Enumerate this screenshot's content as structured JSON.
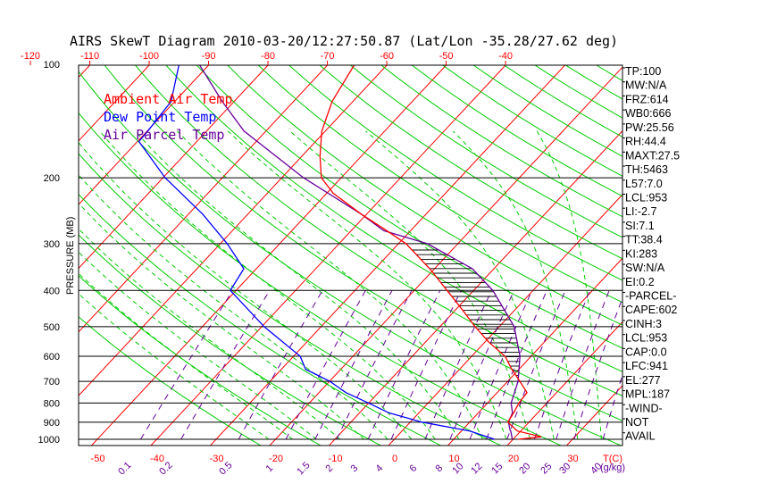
{
  "chart_data": {
    "type": "line",
    "title": "AIRS SkewT Diagram 2010-03-20/12:27:50.87 (Lat/Lon -35.28/27.62 deg)",
    "ylabel": "PRESSURE (MB)",
    "pressure_ticks": [
      "100",
      "200",
      "300",
      "400",
      "500",
      "600",
      "700",
      "800",
      "900",
      "1000"
    ],
    "pressure_values": [
      100,
      200,
      300,
      400,
      500,
      600,
      700,
      800,
      900,
      1000
    ],
    "top_temp_ticks": [
      "-120",
      "-110",
      "-100",
      "-90",
      "-80",
      "-70",
      "-60",
      "-50",
      "-40"
    ],
    "top_temp_values": [
      -120,
      -110,
      -100,
      -90,
      -80,
      -70,
      -60,
      -50,
      -40
    ],
    "bottom_temp_ticks": [
      "-50",
      "-40",
      "-30",
      "-20",
      "-10",
      "0",
      "10",
      "20",
      "30"
    ],
    "bottom_temp_values": [
      -50,
      -40,
      -30,
      -20,
      -10,
      0,
      10,
      20,
      30
    ],
    "bottom_temp_unit": "T(C)",
    "mixing_ratio_ticks": [
      "0.1",
      "0.2",
      "0.5",
      "1",
      "1.5",
      "2",
      "3",
      "4",
      "6",
      "8",
      "10",
      "12",
      "15",
      "20",
      "25",
      "30",
      "40"
    ],
    "mixing_ratio_unit": "(g/kg)",
    "legend": [
      {
        "label": "Ambient Air Temp",
        "color": "#ff0000"
      },
      {
        "label": "Dew Point Temp",
        "color": "#0000ff"
      },
      {
        "label": "Air Parcel Temp",
        "color": "#660099"
      }
    ],
    "series": [
      {
        "name": "Ambient Air Temp",
        "color": "#ff0000",
        "points": [
          [
            1000,
            22.0
          ],
          [
            985,
            25.5
          ],
          [
            950,
            20.5
          ],
          [
            900,
            17.5
          ],
          [
            850,
            17.0
          ],
          [
            800,
            16.3
          ],
          [
            750,
            16.0
          ],
          [
            700,
            13.0
          ],
          [
            650,
            9.7
          ],
          [
            600,
            6.5
          ],
          [
            550,
            1.5
          ],
          [
            500,
            -3.3
          ],
          [
            450,
            -8.2
          ],
          [
            400,
            -13.8
          ],
          [
            350,
            -20.2
          ],
          [
            300,
            -28.2
          ],
          [
            275,
            -34.0
          ],
          [
            250,
            -40.5
          ],
          [
            220,
            -48.5
          ],
          [
            200,
            -53.0
          ],
          [
            175,
            -56.7
          ],
          [
            150,
            -60.4
          ],
          [
            125,
            -63.4
          ],
          [
            100,
            -65.5
          ]
        ]
      },
      {
        "name": "Dew Point Temp",
        "color": "#0000ff",
        "points": [
          [
            1000,
            18.0
          ],
          [
            950,
            12.5
          ],
          [
            900,
            3.0
          ],
          [
            850,
            -4.0
          ],
          [
            800,
            -9.0
          ],
          [
            750,
            -14.5
          ],
          [
            700,
            -19.0
          ],
          [
            650,
            -25.0
          ],
          [
            600,
            -28.0
          ],
          [
            500,
            -38.8
          ],
          [
            400,
            -50.3
          ],
          [
            350,
            -51.5
          ],
          [
            300,
            -58.3
          ],
          [
            250,
            -67.2
          ],
          [
            200,
            -79.3
          ],
          [
            160,
            -89.5
          ],
          [
            150,
            -89.7
          ],
          [
            125,
            -90.5
          ],
          [
            100,
            -95.0
          ]
        ]
      },
      {
        "name": "Air Parcel Temp",
        "color": "#660099",
        "points": [
          [
            1000,
            21.0
          ],
          [
            953,
            19.5
          ],
          [
            941,
            19.0
          ],
          [
            900,
            17.6
          ],
          [
            850,
            16.8
          ],
          [
            800,
            15.0
          ],
          [
            700,
            12.7
          ],
          [
            600,
            9.0
          ],
          [
            500,
            3.3
          ],
          [
            400,
            -6.1
          ],
          [
            350,
            -13.0
          ],
          [
            300,
            -24.6
          ],
          [
            277,
            -34.0
          ],
          [
            250,
            -40.5
          ],
          [
            200,
            -56.0
          ],
          [
            150,
            -73.5
          ],
          [
            125,
            -81.9
          ],
          [
            100,
            -91.5
          ]
        ]
      }
    ],
    "indices": [
      "TP:100",
      "MW:N/A",
      "FRZ:614",
      "WB0:666",
      "PW:25.56",
      "RH:44.4",
      "MAXT:27.5",
      "TH:5463",
      "L57:7.0",
      "LCL:953",
      "LI:-2.7",
      "SI:7.1",
      "TT:38.4",
      "KI:283",
      "SW:N/A",
      "EI:0.2",
      "-PARCEL-",
      "CAPE:602",
      "CINH:3",
      "LCL:953",
      "CAP:0.0",
      "LFC:941",
      "EL:277",
      "MPL:187",
      "-WIND-",
      "NOT",
      "AVAIL"
    ],
    "colors": {
      "isotherm": "#ff0000",
      "dry_adiabat": "#00cc00",
      "moist_adiabat": "#00cc00",
      "mixing_ratio": "#660099",
      "axis": "#000000"
    }
  }
}
